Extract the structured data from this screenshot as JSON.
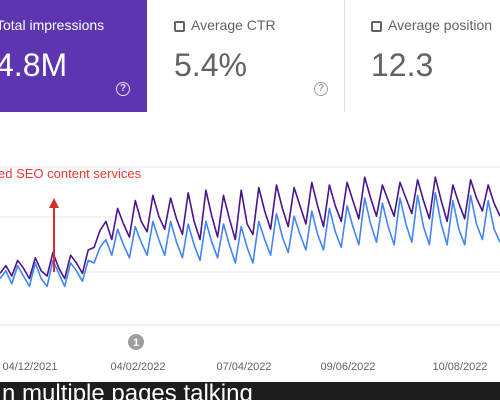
{
  "cards": [
    {
      "label": "Total impressions",
      "value": "4.8M",
      "help": "?"
    },
    {
      "label": "Average CTR",
      "value": "5.4%",
      "help": "?"
    },
    {
      "label": "Average position",
      "value": "12.3"
    }
  ],
  "chart": {
    "annotation": "ed SEO content services",
    "marker": "1",
    "x_ticks": [
      "04/12/2021",
      "04/02/2022",
      "07/04/2022",
      "09/06/2022",
      "10/08/2022"
    ]
  },
  "chart_data": {
    "type": "line",
    "x_ticks": [
      "04/12/2021",
      "04/02/2022",
      "07/04/2022",
      "09/06/2022",
      "10/08/2022"
    ],
    "series": [
      {
        "values": [
          0.22,
          0.28,
          0.2,
          0.32,
          0.26,
          0.18,
          0.34,
          0.24,
          0.2,
          0.38,
          0.26,
          0.18,
          0.36,
          0.3,
          0.22,
          0.4,
          0.42,
          0.55,
          0.62,
          0.48,
          0.72,
          0.6,
          0.5,
          0.78,
          0.62,
          0.54,
          0.82,
          0.66,
          0.56,
          0.8,
          0.64,
          0.52,
          0.84,
          0.62,
          0.48,
          0.86,
          0.66,
          0.5,
          0.82,
          0.64,
          0.48,
          0.86,
          0.6,
          0.52,
          0.88,
          0.7,
          0.56,
          0.9,
          0.72,
          0.58,
          0.88,
          0.74,
          0.6,
          0.92,
          0.74,
          0.58,
          0.9,
          0.74,
          0.62,
          0.92,
          0.78,
          0.64,
          0.96,
          0.8,
          0.66,
          0.9,
          0.78,
          0.66,
          0.92,
          0.8,
          0.68,
          0.94,
          0.78,
          0.64,
          0.96,
          0.78,
          0.62,
          0.9,
          0.76,
          0.64,
          0.94,
          0.8,
          0.7,
          0.9,
          0.76,
          0.66
        ]
      },
      {
        "values": [
          0.18,
          0.24,
          0.14,
          0.28,
          0.2,
          0.12,
          0.3,
          0.18,
          0.12,
          0.32,
          0.22,
          0.12,
          0.3,
          0.24,
          0.16,
          0.32,
          0.3,
          0.42,
          0.48,
          0.36,
          0.56,
          0.44,
          0.34,
          0.58,
          0.46,
          0.36,
          0.62,
          0.48,
          0.36,
          0.62,
          0.46,
          0.34,
          0.6,
          0.44,
          0.32,
          0.62,
          0.46,
          0.34,
          0.6,
          0.44,
          0.3,
          0.58,
          0.42,
          0.3,
          0.62,
          0.48,
          0.36,
          0.68,
          0.5,
          0.38,
          0.66,
          0.52,
          0.4,
          0.7,
          0.52,
          0.4,
          0.72,
          0.54,
          0.42,
          0.74,
          0.58,
          0.44,
          0.8,
          0.6,
          0.46,
          0.76,
          0.58,
          0.44,
          0.8,
          0.6,
          0.46,
          0.82,
          0.58,
          0.44,
          0.84,
          0.6,
          0.44,
          0.78,
          0.56,
          0.44,
          0.82,
          0.6,
          0.48,
          0.78,
          0.56,
          0.46
        ]
      }
    ],
    "colors": [
      "#4a148c",
      "#4285f4"
    ]
  },
  "bottom": {
    "text": "n multiple pages talking"
  }
}
